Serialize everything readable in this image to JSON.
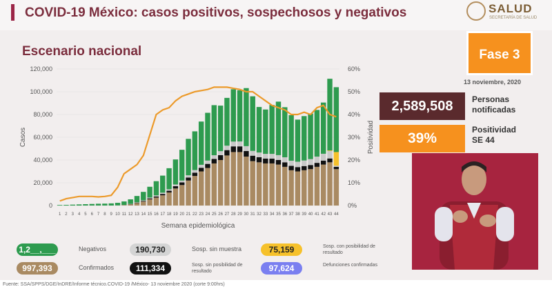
{
  "header": {
    "title": "COVID-19 México: casos positivos, sospechosos y negativos",
    "logo_text": "SALUD",
    "logo_subtext": "SECRETARÍA DE SALUD"
  },
  "subtitle": "Escenario nacional",
  "fase": "Fase 3",
  "date": "13 noviembre, 2020",
  "stats": {
    "personas_value": "2,589,508",
    "personas_label_1": "Personas",
    "personas_label_2": "notificadas",
    "positividad_value": "39%",
    "positividad_label_1": "Positividad",
    "positividad_label_2": "SE 44"
  },
  "legend": [
    {
      "value": "1,2__,___",
      "label": "Negativos",
      "color": "#2e9b4f"
    },
    {
      "value": "190,730",
      "label": "Sosp. sin muestra",
      "color": "#c9c9c9"
    },
    {
      "value": "75,159",
      "label": "Sosp. con posibilidad de resultado",
      "color": "#f6c12b"
    },
    {
      "value": "997,393",
      "label": "Confirmados",
      "color": "#a98a62"
    },
    {
      "value": "111,334",
      "label": "Sosp. sin posibilidad de resultado",
      "color": "#111111"
    },
    {
      "value": "97,624",
      "label": "Defunciones confirmadas",
      "color": "#7a7ff0"
    }
  ],
  "footer": "Fuente: SSA/SPPS/DGE/InDRE/Informe técnico.COVID-19 /México- 13 noviembre 2020 (corte 9:00hrs)",
  "chart_data": {
    "type": "bar",
    "xlabel": "Semana epidemiológica",
    "ylabel": "Casos",
    "y2label": "Positividad",
    "ylim": [
      0,
      120000
    ],
    "y2lim": [
      0,
      60
    ],
    "yticks": [
      "0",
      "20,000",
      "40,000",
      "60,000",
      "80,000",
      "100,000",
      "120,000"
    ],
    "y2ticks": [
      "0%",
      "10%",
      "20%",
      "30%",
      "40%",
      "50%",
      "60%"
    ],
    "categories": [
      "1",
      "2",
      "3",
      "4",
      "5",
      "6",
      "7",
      "8",
      "9",
      "10",
      "11",
      "12",
      "13",
      "14",
      "15",
      "16",
      "17",
      "18",
      "19",
      "20",
      "21",
      "22",
      "23",
      "24",
      "25",
      "26",
      "27",
      "28",
      "29",
      "30",
      "31",
      "32",
      "33",
      "34",
      "35",
      "36",
      "37",
      "38",
      "39",
      "40",
      "41",
      "42",
      "43",
      "44"
    ],
    "series": [
      {
        "name": "Confirmados",
        "color": "#a98a62",
        "values": [
          0,
          0,
          0,
          0,
          0,
          0,
          0,
          0,
          0,
          100,
          400,
          1100,
          2200,
          3500,
          5500,
          7000,
          9000,
          11500,
          15000,
          18000,
          22000,
          26000,
          30000,
          33000,
          37000,
          40000,
          44000,
          47000,
          47000,
          43000,
          39000,
          38000,
          37000,
          37000,
          36000,
          34000,
          31000,
          30000,
          31000,
          32000,
          34000,
          36000,
          38000,
          32000
        ]
      },
      {
        "name": "Sosp. sin posibilidad de resultado",
        "color": "#111111",
        "values": [
          0,
          0,
          0,
          0,
          0,
          0,
          0,
          0,
          0,
          0,
          50,
          200,
          400,
          600,
          800,
          1000,
          1200,
          1500,
          2000,
          2300,
          2600,
          2900,
          3200,
          3600,
          4000,
          4300,
          4700,
          5000,
          5000,
          4900,
          4800,
          4500,
          4300,
          4200,
          4000,
          4000,
          3900,
          3800,
          3700,
          3600,
          3500,
          3500,
          3400,
          2000
        ]
      },
      {
        "name": "Sosp. sin muestra",
        "color": "#c9c9c9",
        "values": [
          0,
          0,
          0,
          0,
          0,
          0,
          0,
          0,
          0,
          0,
          50,
          150,
          300,
          500,
          700,
          900,
          1100,
          1300,
          1500,
          1700,
          2000,
          2300,
          2600,
          2900,
          3200,
          3500,
          3900,
          4200,
          4300,
          4300,
          4200,
          4100,
          4100,
          4200,
          4300,
          4400,
          4500,
          4700,
          4900,
          5200,
          5500,
          6000,
          6500,
          1000
        ]
      },
      {
        "name": "Sosp. con posibilidad de resultado",
        "color": "#f6c12b",
        "values": [
          0,
          0,
          0,
          0,
          0,
          0,
          0,
          0,
          0,
          0,
          0,
          0,
          0,
          0,
          0,
          0,
          0,
          0,
          0,
          0,
          0,
          0,
          0,
          0,
          0,
          0,
          0,
          0,
          0,
          0,
          0,
          0,
          0,
          0,
          0,
          0,
          0,
          0,
          0,
          0,
          0,
          0,
          500,
          12000
        ]
      },
      {
        "name": "Negativos",
        "color": "#2e9b4f",
        "values": [
          500,
          600,
          800,
          1000,
          1200,
          1400,
          1600,
          1700,
          1900,
          2300,
          3100,
          4000,
          5500,
          7400,
          9500,
          12500,
          15000,
          18500,
          22000,
          27000,
          32000,
          34000,
          38000,
          42000,
          44000,
          40000,
          42000,
          46000,
          45000,
          51000,
          48000,
          40000,
          39000,
          43000,
          47000,
          44000,
          40000,
          37000,
          39000,
          40000,
          41000,
          45000,
          63000,
          57000
        ]
      }
    ],
    "positivity": [
      2,
      3,
      3.5,
      4,
      4,
      4,
      3.8,
      4,
      4.5,
      8,
      14,
      16,
      18,
      22,
      31,
      40,
      42,
      43,
      46,
      48,
      49,
      50,
      50.5,
      51,
      52,
      52,
      52,
      51.5,
      51,
      50,
      50,
      48,
      46,
      44,
      43,
      42,
      40,
      40,
      41,
      40,
      43,
      44,
      40,
      39
    ]
  }
}
